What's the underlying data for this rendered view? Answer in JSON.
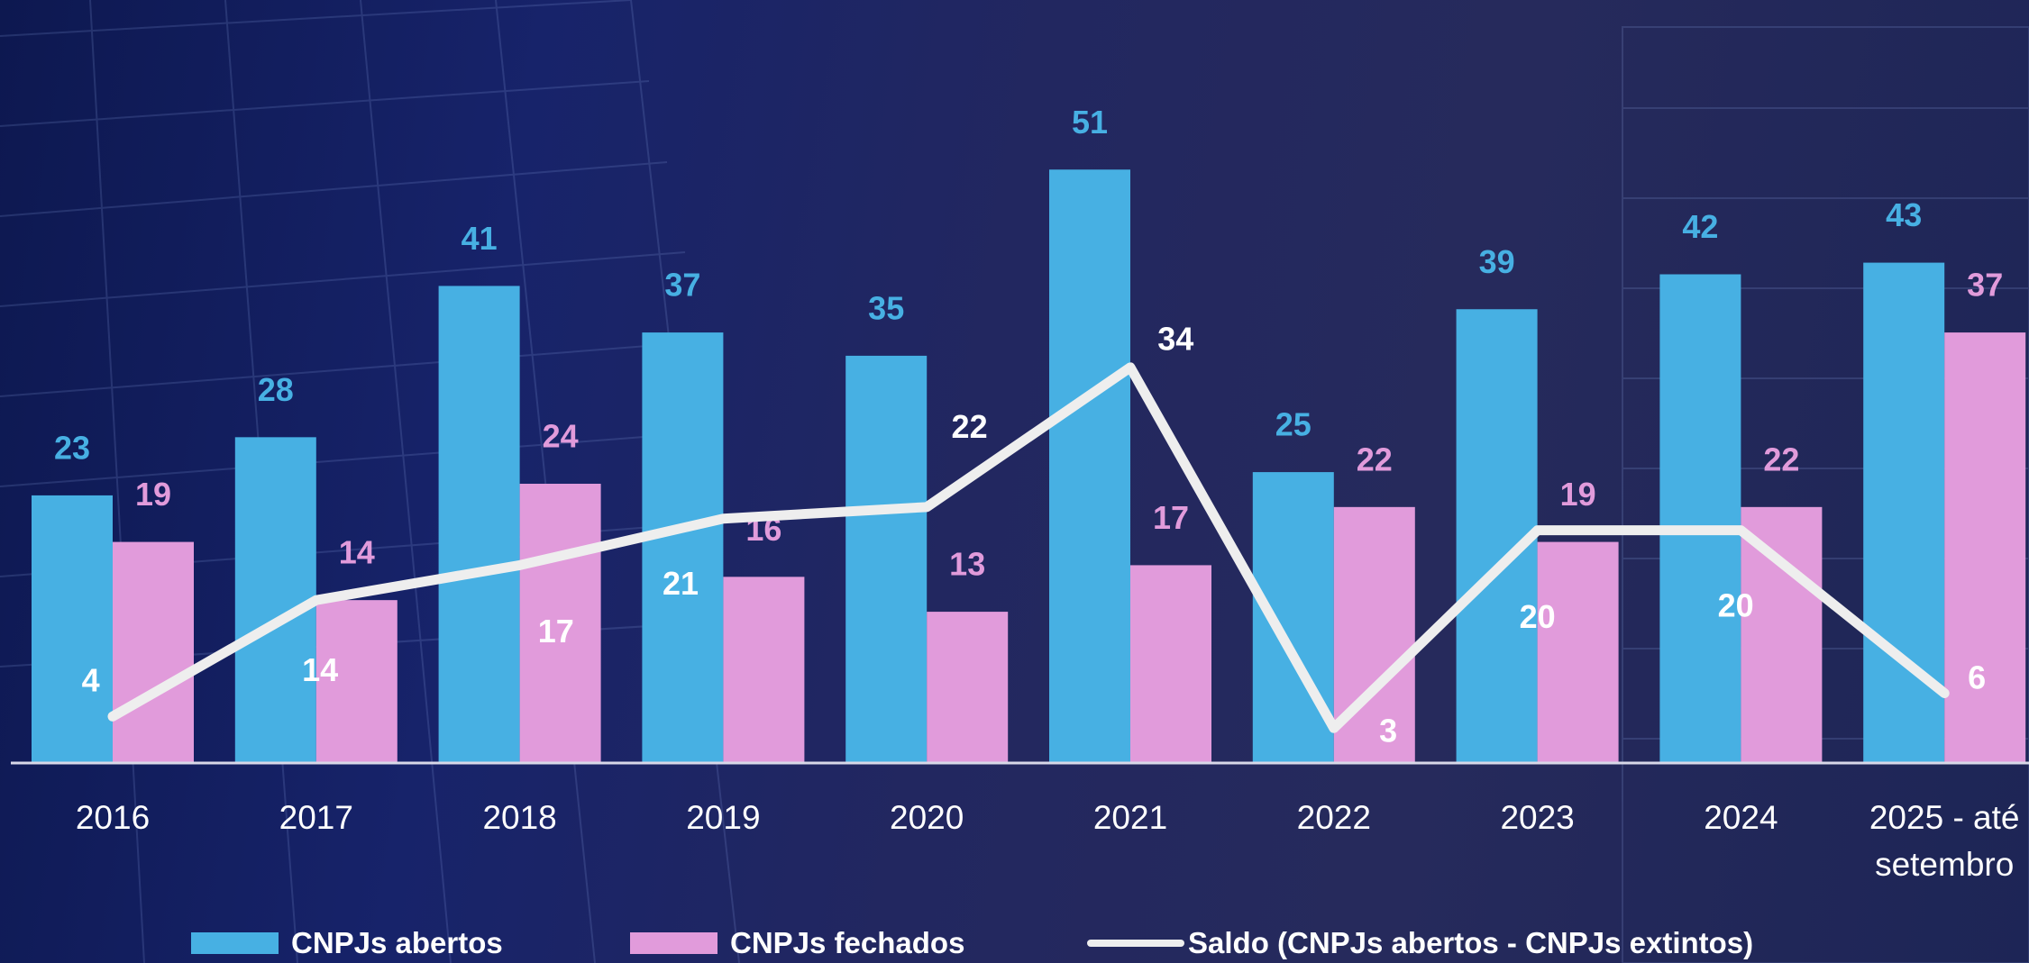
{
  "chart_data": {
    "type": "bar",
    "categories": [
      "2016",
      "2017",
      "2018",
      "2019",
      "2020",
      "2021",
      "2022",
      "2023",
      "2024",
      "2025 - até setembro"
    ],
    "series": [
      {
        "name": "CNPJs abertos",
        "color": "#47b0e3",
        "values": [
          23,
          28,
          41,
          37,
          35,
          51,
          25,
          39,
          42,
          43
        ]
      },
      {
        "name": "CNPJs fechados",
        "color": "#e19bdb",
        "values": [
          19,
          14,
          24,
          16,
          13,
          17,
          22,
          19,
          22,
          37
        ]
      },
      {
        "name": "Saldo (CNPJs abertos - CNPJs extintos)",
        "type": "line",
        "color": "#eeeeee",
        "values": [
          4,
          14,
          17,
          21,
          22,
          34,
          3,
          20,
          20,
          6
        ]
      }
    ],
    "ylim": [
      0,
      60
    ]
  }
}
